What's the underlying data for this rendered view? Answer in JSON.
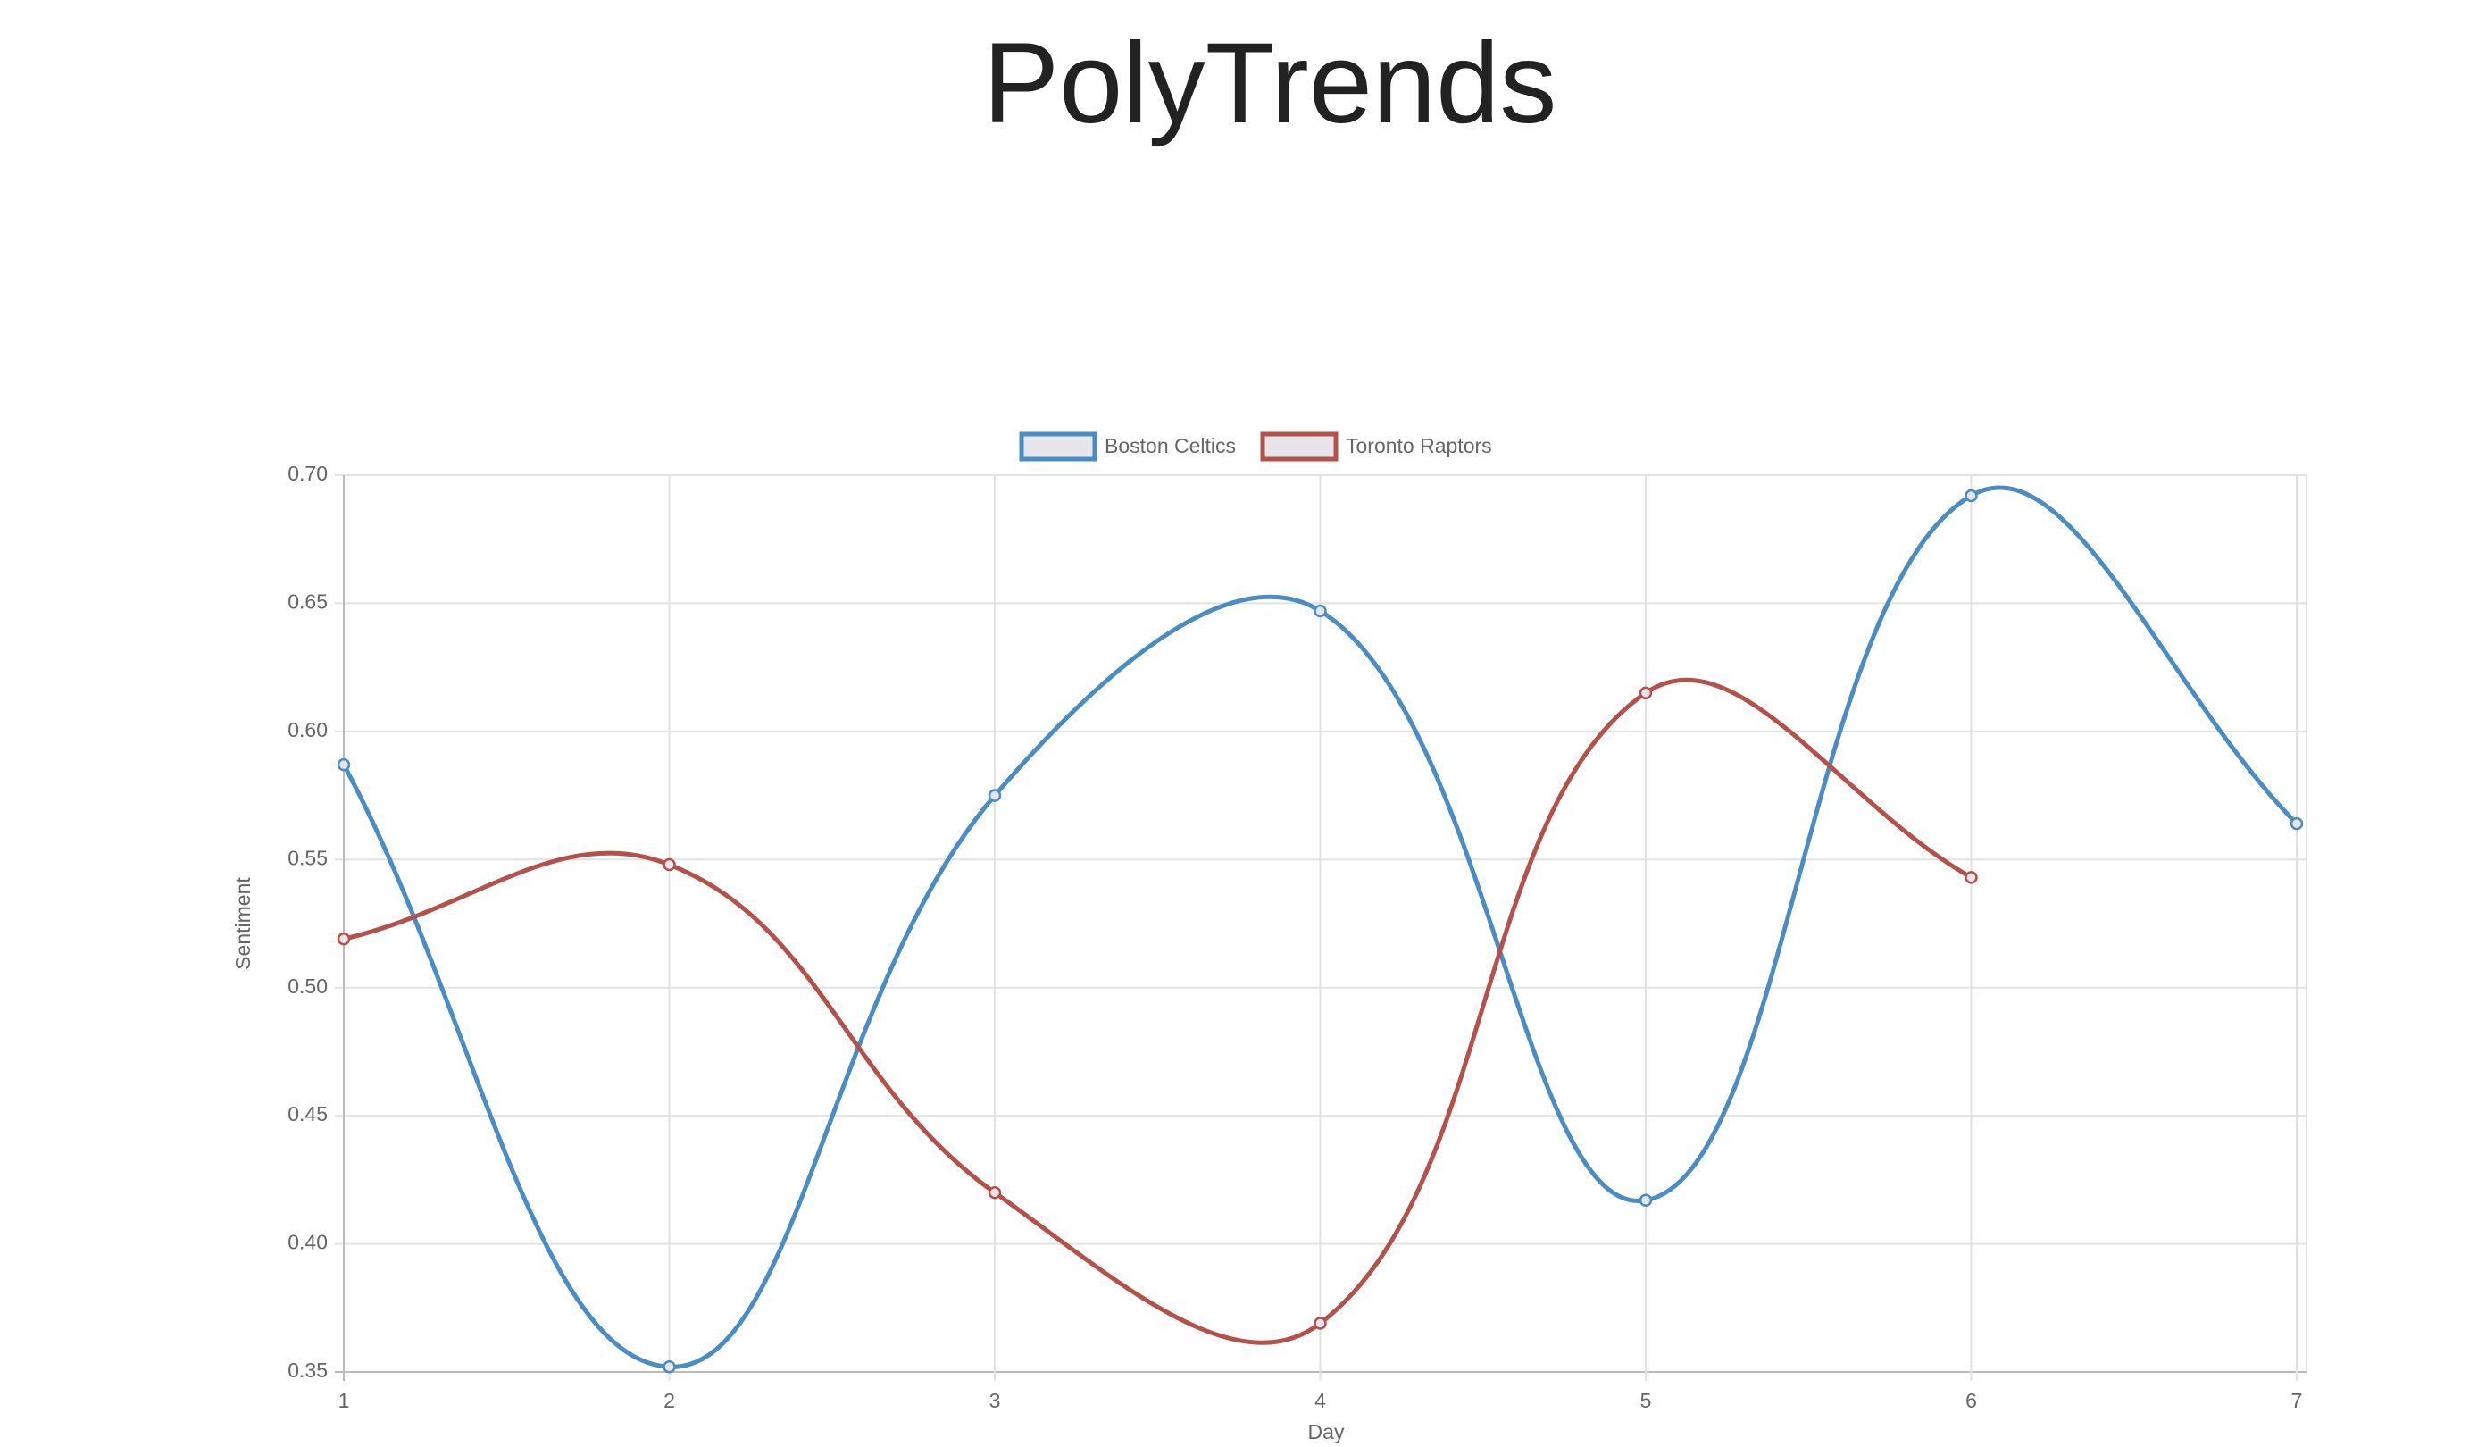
{
  "header": {
    "title": "PolyTrends"
  },
  "chart_data": {
    "type": "line",
    "x": [
      1,
      2,
      3,
      4,
      5,
      6,
      7
    ],
    "xlim": [
      1,
      7
    ],
    "xticks": [
      1,
      2,
      3,
      4,
      5,
      6,
      7
    ],
    "ylim": [
      0.35,
      0.7
    ],
    "yticks": [
      {
        "value": 0.35,
        "label": "0.35"
      },
      {
        "value": 0.4,
        "label": "0.40"
      },
      {
        "value": 0.45,
        "label": "0.45"
      },
      {
        "value": 0.5,
        "label": "0.50"
      },
      {
        "value": 0.55,
        "label": "0.55"
      },
      {
        "value": 0.6,
        "label": "0.60"
      },
      {
        "value": 0.65,
        "label": "0.65"
      },
      {
        "value": 0.7,
        "label": "0.70"
      }
    ],
    "x_label": "Day",
    "y_label": "Sentiment",
    "grid": true,
    "legend": "top",
    "series": [
      {
        "name": "Boston Celtics",
        "color": "#4a8cc4",
        "values": [
          0.587,
          0.352,
          0.575,
          0.647,
          0.417,
          0.692,
          0.564
        ]
      },
      {
        "name": "Toronto Raptors",
        "color": "#b4514a",
        "values": [
          0.519,
          0.548,
          0.42,
          0.369,
          0.615,
          0.543,
          null
        ]
      }
    ]
  }
}
